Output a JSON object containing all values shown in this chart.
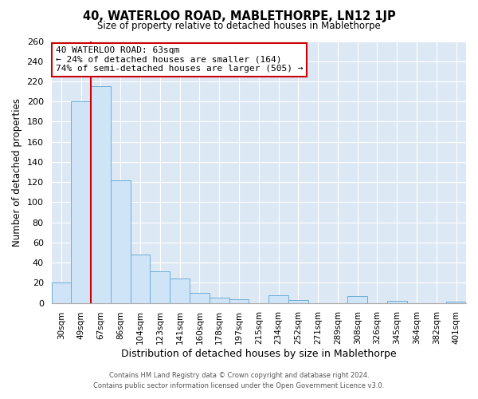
{
  "title": "40, WATERLOO ROAD, MABLETHORPE, LN12 1JP",
  "subtitle": "Size of property relative to detached houses in Mablethorpe",
  "xlabel": "Distribution of detached houses by size in Mablethorpe",
  "ylabel": "Number of detached properties",
  "categories": [
    "30sqm",
    "49sqm",
    "67sqm",
    "86sqm",
    "104sqm",
    "123sqm",
    "141sqm",
    "160sqm",
    "178sqm",
    "197sqm",
    "215sqm",
    "234sqm",
    "252sqm",
    "271sqm",
    "289sqm",
    "308sqm",
    "326sqm",
    "345sqm",
    "364sqm",
    "382sqm",
    "401sqm"
  ],
  "values": [
    20,
    200,
    215,
    122,
    48,
    31,
    24,
    10,
    5,
    4,
    0,
    8,
    3,
    0,
    0,
    7,
    0,
    2,
    0,
    0,
    1
  ],
  "bar_color": "#d0e4f7",
  "bar_edge_color": "#6baed6",
  "vline_x_idx": 1,
  "vline_color": "#cc0000",
  "ylim": [
    0,
    260
  ],
  "yticks": [
    0,
    20,
    40,
    60,
    80,
    100,
    120,
    140,
    160,
    180,
    200,
    220,
    240,
    260
  ],
  "annotation_title": "40 WATERLOO ROAD: 63sqm",
  "annotation_line1": "← 24% of detached houses are smaller (164)",
  "annotation_line2": "74% of semi-detached houses are larger (505) →",
  "annotation_box_facecolor": "#ffffff",
  "annotation_box_edgecolor": "#cc0000",
  "plot_bg_color": "#dde8f5",
  "fig_bg_color": "#ffffff",
  "grid_color": "#ffffff",
  "footnote1": "Contains HM Land Registry data © Crown copyright and database right 2024.",
  "footnote2": "Contains public sector information licensed under the Open Government Licence v3.0."
}
